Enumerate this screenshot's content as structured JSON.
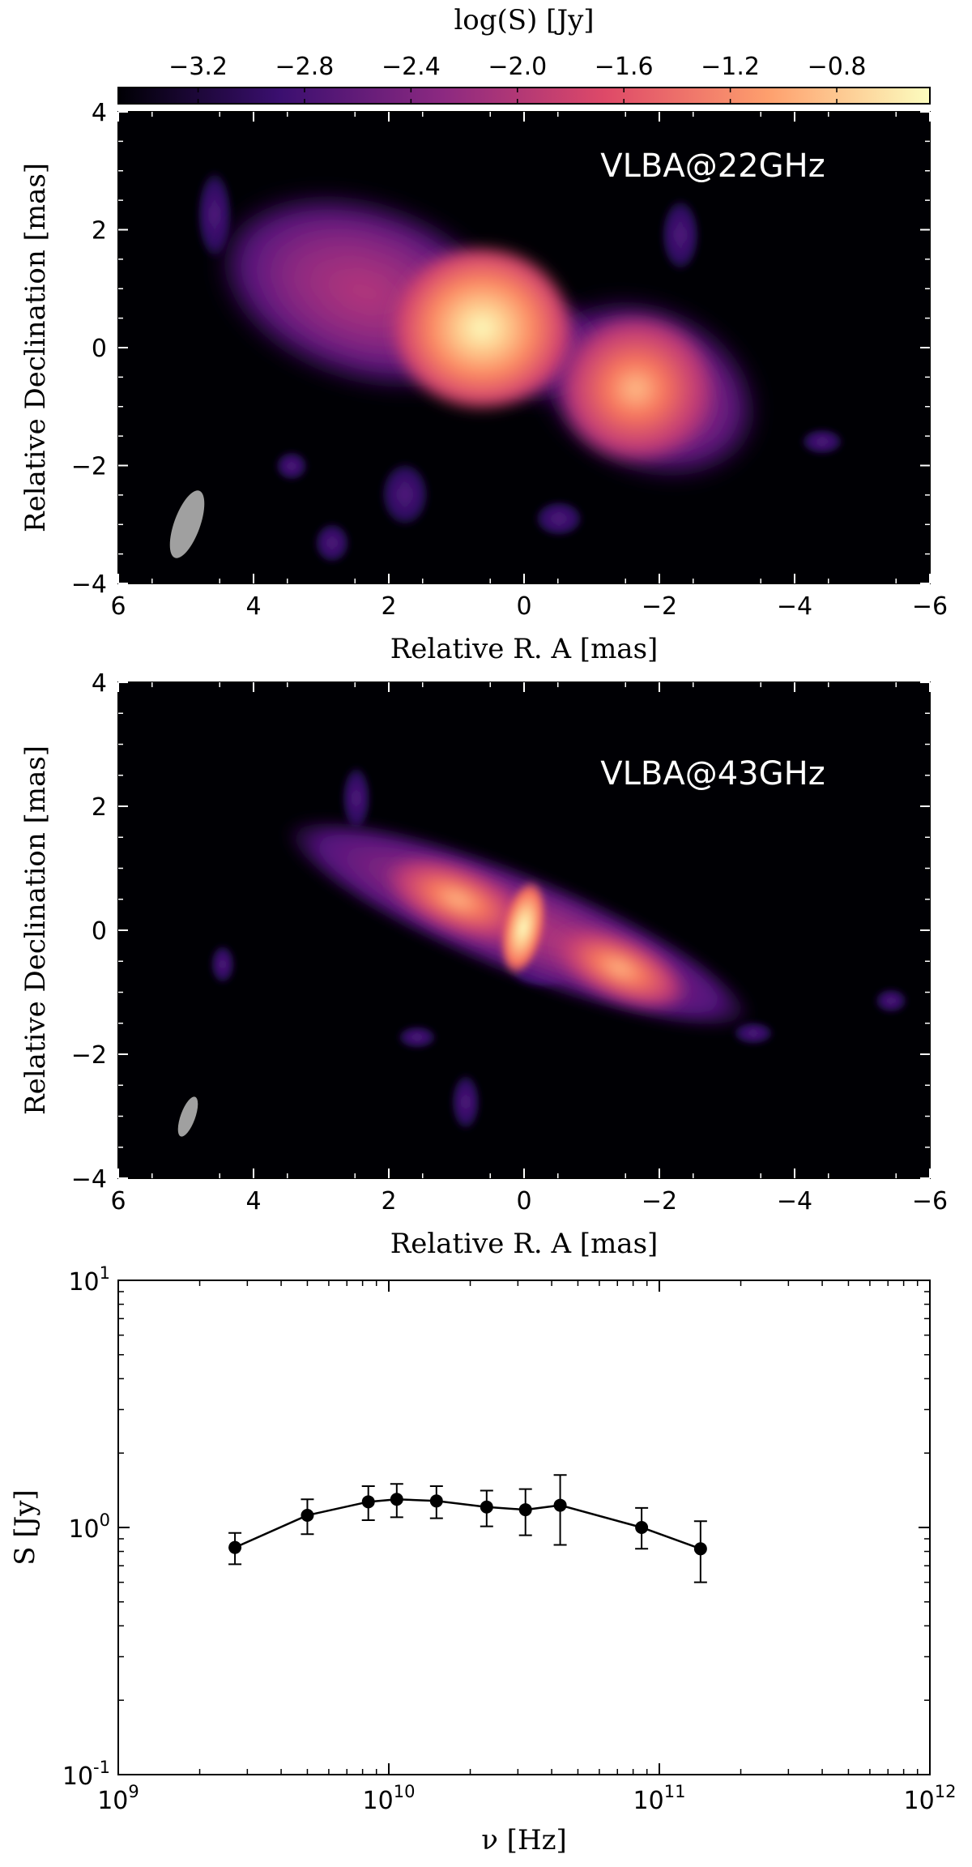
{
  "colorbar": {
    "label": "log(S) [Jy]",
    "ticks": [
      "−3.2",
      "−2.8",
      "−2.4",
      "−2.0",
      "−1.6",
      "−1.2",
      "−0.8"
    ],
    "tick_values": [
      -3.2,
      -2.8,
      -2.4,
      -2.0,
      -1.6,
      -1.2,
      -0.8
    ],
    "range": [
      -3.5,
      -0.45
    ],
    "colors": [
      "#000004",
      "#3b0f70",
      "#8c2981",
      "#de4968",
      "#fe9f6d",
      "#fcfdbf"
    ]
  },
  "chart_data": [
    {
      "type": "heatmap",
      "panel_label": "VLBA@22GHz",
      "xlabel": "Relative R. A [mas]",
      "ylabel": "Relative Declination [mas]",
      "xlim": [
        6,
        -6
      ],
      "ylim": [
        -4,
        4
      ],
      "xticks": [
        6,
        4,
        2,
        0,
        -2,
        -4,
        -6
      ],
      "yticks": [
        -4,
        -2,
        0,
        2,
        4
      ],
      "xtick_labels": [
        "6",
        "4",
        "2",
        "0",
        "−2",
        "−4",
        "−6"
      ],
      "ytick_labels": [
        "−4",
        "−2",
        "0",
        "2",
        "4"
      ],
      "components": [
        {
          "ra": 0.6,
          "dec": 0.3,
          "peak_logS": -0.6
        },
        {
          "ra": -1.6,
          "dec": -0.7,
          "peak_logS": -1.3
        },
        {
          "ra": 3.0,
          "dec": 1.0,
          "peak_logS": -2.2
        }
      ]
    },
    {
      "type": "heatmap",
      "panel_label": "VLBA@43GHz",
      "xlabel": "Relative R. A [mas]",
      "ylabel": "Relative Declination [mas]",
      "xlim": [
        6,
        -6
      ],
      "ylim": [
        -4,
        4
      ],
      "xticks": [
        6,
        4,
        2,
        0,
        -2,
        -4,
        -6
      ],
      "yticks": [
        -4,
        -2,
        0,
        2,
        4
      ],
      "xtick_labels": [
        "6",
        "4",
        "2",
        "0",
        "−2",
        "−4",
        "−6"
      ],
      "ytick_labels": [
        "−4",
        "−2",
        "0",
        "2",
        "4"
      ],
      "components": [
        {
          "ra": 0.05,
          "dec": 0.1,
          "peak_logS": -0.5
        },
        {
          "ra": 0.8,
          "dec": 0.2,
          "peak_logS": -1.6
        },
        {
          "ra": -1.8,
          "dec": -0.8,
          "peak_logS": -1.7
        }
      ]
    },
    {
      "type": "scatter",
      "xlabel": "ν [Hz]",
      "ylabel": "S [Jy]",
      "xscale": "log",
      "yscale": "log",
      "xlim": [
        1000000000.0,
        1000000000000.0
      ],
      "ylim": [
        0.1,
        10
      ],
      "xtick_labels": [
        {
          "base": "10",
          "exp": "9"
        },
        {
          "base": "10",
          "exp": "10"
        },
        {
          "base": "10",
          "exp": "11"
        },
        {
          "base": "10",
          "exp": "12"
        }
      ],
      "ytick_labels": [
        {
          "base": "10",
          "exp": "-1"
        },
        {
          "base": "10",
          "exp": "0"
        },
        {
          "base": "10",
          "exp": "1"
        }
      ],
      "series": [
        {
          "x": [
            2700000000.0,
            5000000000.0,
            8400000000.0,
            10700000000.0,
            15000000000.0,
            23000000000.0,
            32000000000.0,
            43000000000.0,
            86000000000.0,
            142000000000.0
          ],
          "y": [
            0.83,
            1.12,
            1.27,
            1.3,
            1.28,
            1.21,
            1.18,
            1.23,
            1.0,
            0.82
          ],
          "yerr_low": [
            0.12,
            0.18,
            0.2,
            0.2,
            0.19,
            0.2,
            0.25,
            0.38,
            0.18,
            0.22
          ],
          "yerr_high": [
            0.12,
            0.18,
            0.2,
            0.2,
            0.19,
            0.2,
            0.25,
            0.4,
            0.2,
            0.24
          ]
        }
      ]
    }
  ]
}
